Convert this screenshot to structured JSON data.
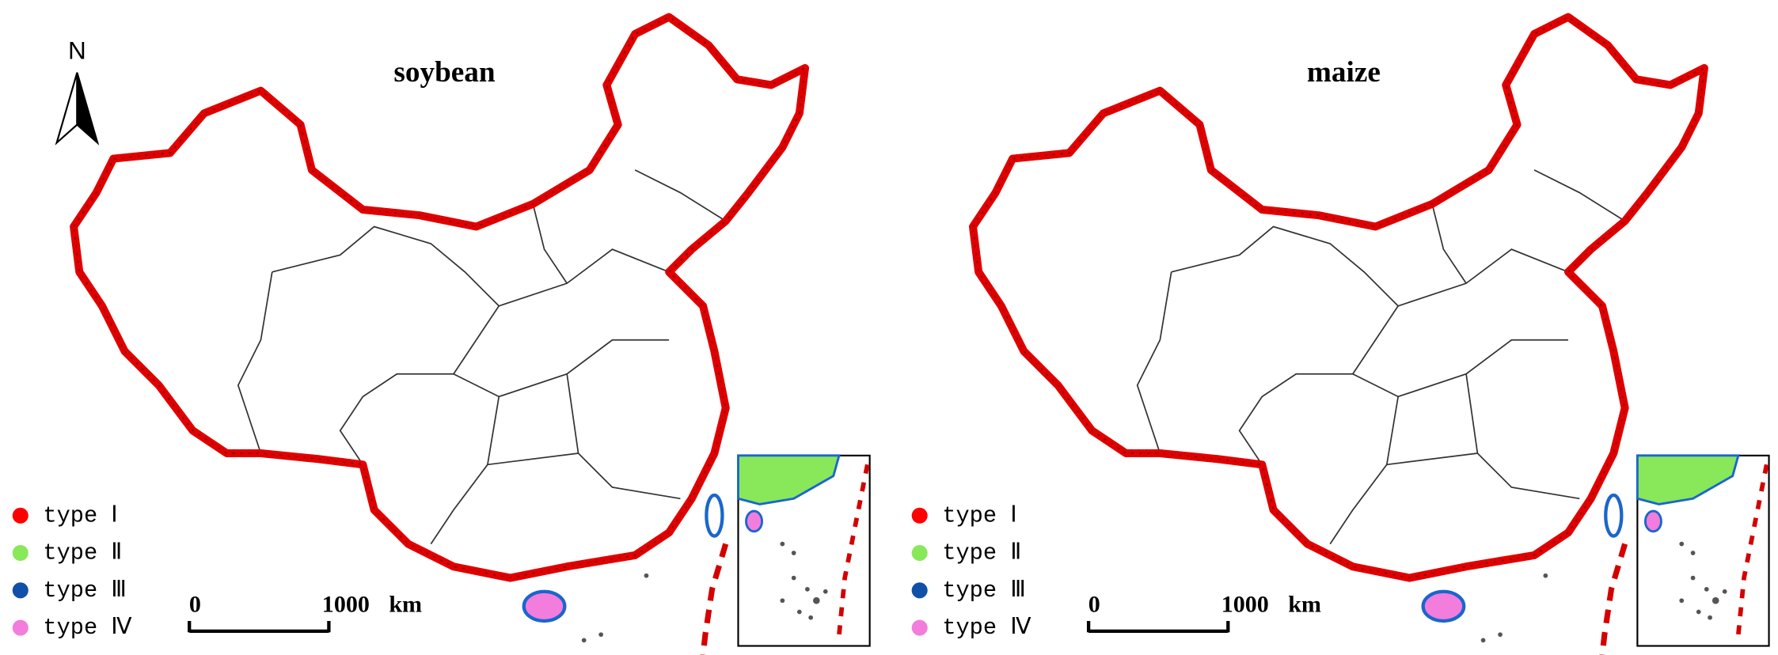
{
  "north_label": "N",
  "panels": [
    {
      "title": "soybean",
      "legend": [
        {
          "label": "type Ⅰ",
          "color": "#ff0000"
        },
        {
          "label": "type Ⅱ",
          "color": "#88e85a"
        },
        {
          "label": "type Ⅲ",
          "color": "#1150a8"
        },
        {
          "label": "type Ⅳ",
          "color": "#f27ddc"
        }
      ],
      "scale_bar": {
        "start": "0",
        "end": "1000",
        "unit": "km"
      }
    },
    {
      "title": "maize",
      "legend": [
        {
          "label": "type Ⅰ",
          "color": "#ff0000"
        },
        {
          "label": "type Ⅱ",
          "color": "#88e85a"
        },
        {
          "label": "type Ⅲ",
          "color": "#1150a8"
        },
        {
          "label": "type Ⅳ",
          "color": "#f27ddc"
        }
      ],
      "scale_bar": {
        "start": "0",
        "end": "1000",
        "unit": "km"
      }
    }
  ]
}
